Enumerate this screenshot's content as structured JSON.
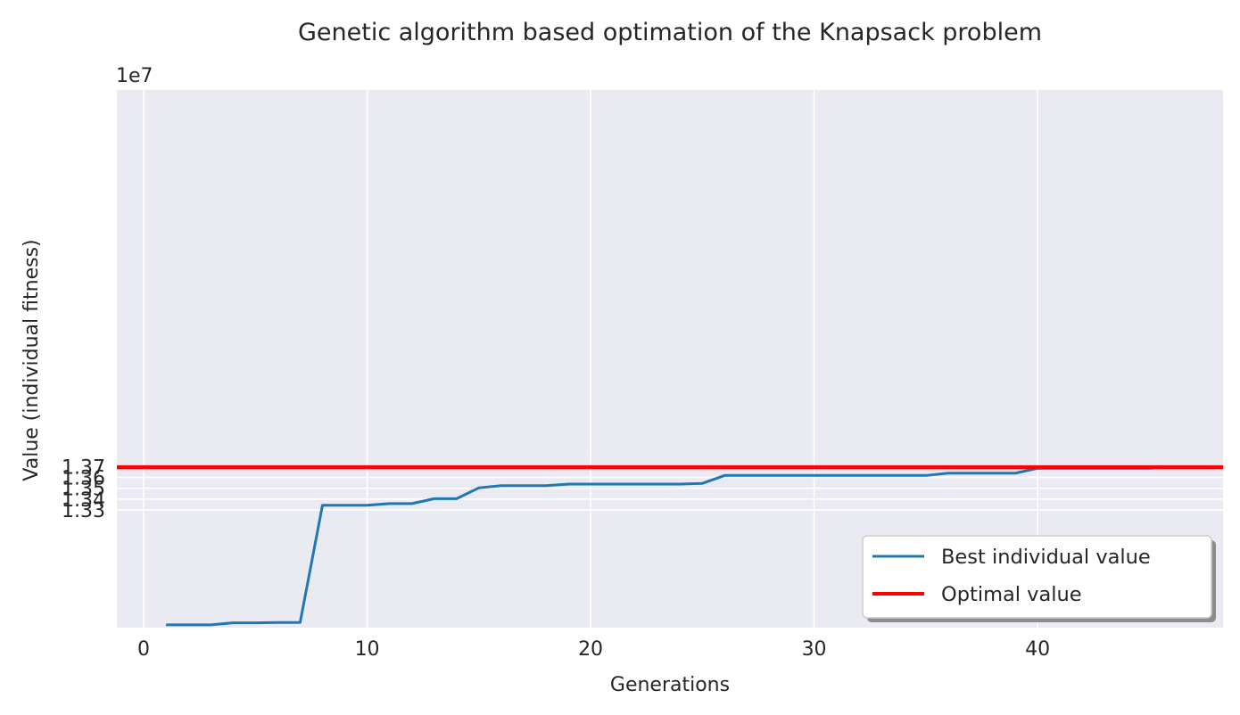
{
  "chart_data": {
    "type": "line",
    "title": "Genetic algorithm based optimation of the Knapsack problem",
    "xlabel": "Generations",
    "ylabel": "Value (individual fitness)",
    "y_offset_label": "1e7",
    "xlim": [
      -1.2,
      48.3
    ],
    "ylim": [
      13.2216,
      13.7169
    ],
    "x_ticks": [
      0,
      10,
      20,
      30,
      40
    ],
    "y_ticks": [
      13.3,
      13.31,
      13.32,
      13.33,
      13.34,
      13.35,
      13.36,
      13.37
    ],
    "y_tick_labels": [
      "1.33",
      "1.34",
      "1.35",
      "1.36",
      "1.37"
    ],
    "y_tick_values": [
      13.33,
      13.34,
      13.35,
      13.36,
      13.37
    ],
    "grid": true,
    "legend_position": "lower-right",
    "colors": {
      "background": "#eaeaf2",
      "grid": "#ffffff",
      "best": "#1f77b4",
      "optimal": "#ff0000"
    },
    "series": [
      {
        "name": "Best individual value",
        "x": [
          1,
          2,
          3,
          4,
          5,
          6,
          7,
          8,
          9,
          10,
          11,
          12,
          13,
          14,
          15,
          16,
          17,
          18,
          19,
          20,
          21,
          22,
          23,
          24,
          25,
          26,
          27,
          28,
          29,
          30,
          31,
          32,
          33,
          34,
          35,
          36,
          37,
          38,
          39,
          40,
          41,
          42,
          43,
          44,
          45,
          46,
          47
        ],
        "values": [
          13.2242,
          13.2242,
          13.2242,
          13.226,
          13.226,
          13.2263,
          13.2263,
          13.3343,
          13.3343,
          13.3343,
          13.3359,
          13.3359,
          13.3404,
          13.3404,
          13.3504,
          13.3524,
          13.3524,
          13.3524,
          13.3538,
          13.3538,
          13.3538,
          13.3538,
          13.3538,
          13.3538,
          13.3545,
          13.3618,
          13.3618,
          13.3618,
          13.3618,
          13.3618,
          13.3618,
          13.3618,
          13.3618,
          13.3618,
          13.3618,
          13.3639,
          13.3639,
          13.3639,
          13.3639,
          13.3684,
          13.3684,
          13.3684,
          13.3684,
          13.3684,
          13.3684,
          13.3693,
          13.3693
        ]
      },
      {
        "name": "Optimal value",
        "y": 13.3693
      }
    ]
  }
}
